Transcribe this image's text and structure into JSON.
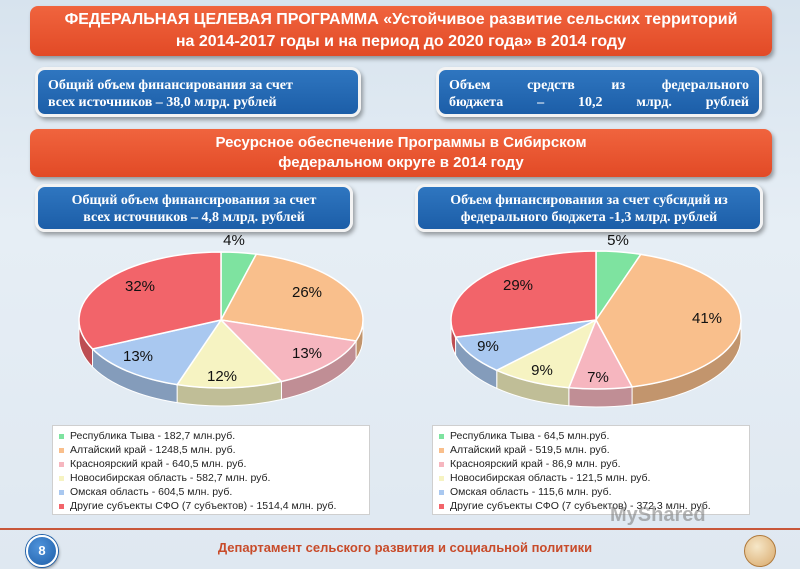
{
  "header": {
    "title_line1": "ФЕДЕРАЛЬНАЯ ЦЕЛЕВАЯ ПРОГРАММА «Устойчивое развитие сельских территорий",
    "title_line2": "на 2014-2017 годы и на период до 2020 года» в 2014 году"
  },
  "top_boxes": {
    "left_line1": "Общий объем финансирования за счет",
    "left_line2": "всех источников – 38,0 млрд. рублей",
    "right_line1": "Объем средств из федерального",
    "right_line2": "бюджета – 10,2 млрд. рублей"
  },
  "section": {
    "title_line1": "Ресурсное обеспечение Программы в Сибирском",
    "title_line2": "федеральном округе в 2014 году"
  },
  "mid_boxes": {
    "left_line1": "Общий объем финансирования за счет",
    "left_line2": "всех источников – 4,8 млрд. рублей",
    "right_line1": "Объем финансирования за счет субсидий из",
    "right_line2": "федерального бюджета -1,3 млрд. рублей"
  },
  "colors": {
    "tyva": "#7ee3a0",
    "altai": "#f9bf8c",
    "krasnoyarsk": "#f6b6bf",
    "novosibirsk": "#f6f3c2",
    "omsk": "#a9c8f0",
    "others": "#f2646a",
    "banner": "#e8552f",
    "box": "#2566b0"
  },
  "chart_data": [
    {
      "type": "pie",
      "series": [
        {
          "label": "Республика Тыва - 182,7 млн.руб.",
          "value": 4,
          "value_label": "4%"
        },
        {
          "label": "Алтайский край - 1248,5 млн. руб.",
          "value": 26,
          "value_label": "26%"
        },
        {
          "label": "Красноярский край - 640,5 млн. руб.",
          "value": 13,
          "value_label": "13%"
        },
        {
          "label": "Новосибирская область - 582,7 млн. руб.",
          "value": 12,
          "value_label": "12%"
        },
        {
          "label": "Омская область - 604,5 млн. руб.",
          "value": 13,
          "value_label": "13%"
        },
        {
          "label": "Другие субъекты СФО (7 субъектов) - 1514,4 млн. руб.",
          "value": 32,
          "value_label": "32%"
        }
      ]
    },
    {
      "type": "pie",
      "series": [
        {
          "label": "Республика Тыва - 64,5 млн.руб.",
          "value": 5,
          "value_label": "5%"
        },
        {
          "label": "Алтайский край - 519,5 млн. руб.",
          "value": 41,
          "value_label": "41%"
        },
        {
          "label": "Красноярский край - 86,9 млн. руб.",
          "value": 7,
          "value_label": "7%"
        },
        {
          "label": "Новосибирская область - 121,5 млн. руб.",
          "value": 9,
          "value_label": "9%"
        },
        {
          "label": "Омская область - 115,6 млн. руб.",
          "value": 9,
          "value_label": "9%"
        },
        {
          "label": "Другие субъекты СФО (7 субъектов) - 372,3 млн. руб.",
          "value": 29,
          "value_label": "29%"
        }
      ]
    }
  ],
  "footer": {
    "page_number": "8",
    "text": "Департамент сельского развития и социальной политики",
    "watermark": "MyShared"
  }
}
